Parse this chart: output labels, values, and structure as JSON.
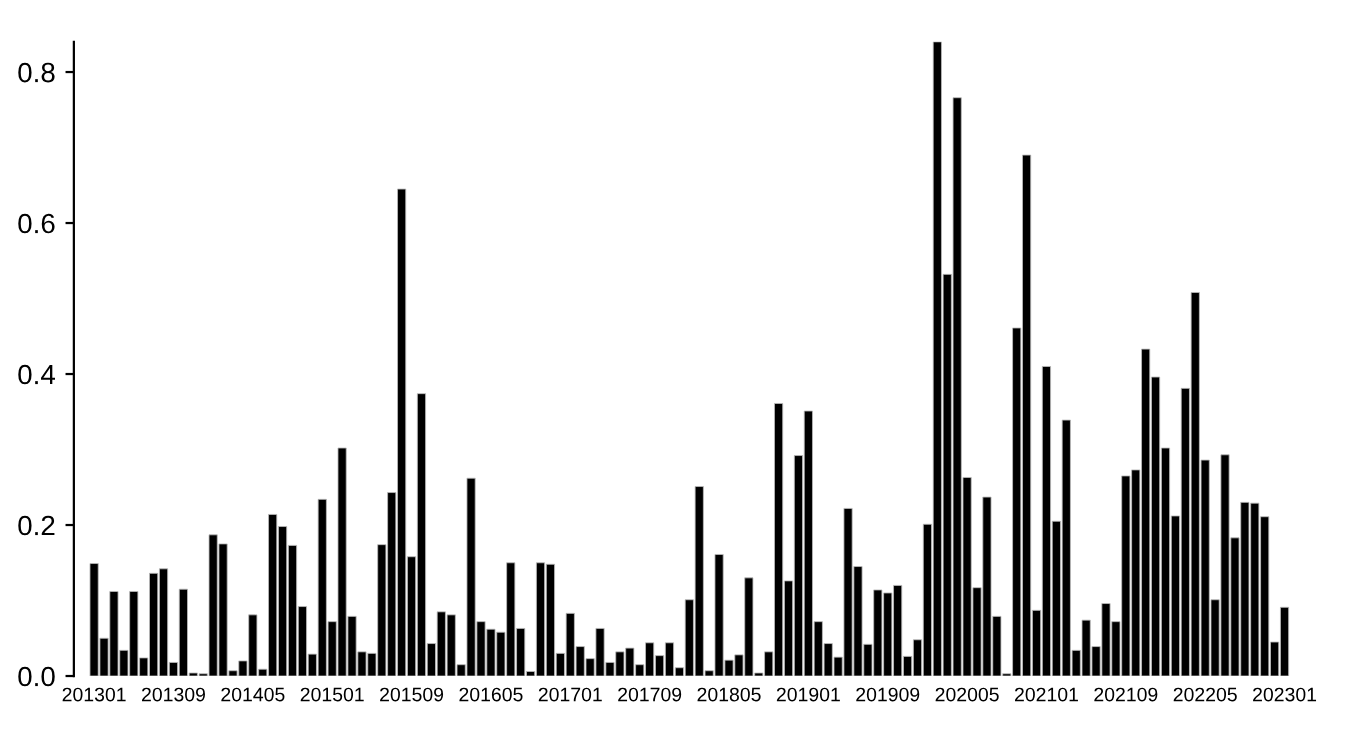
{
  "chart_data": {
    "type": "bar",
    "categories": [
      "201301",
      null,
      null,
      null,
      null,
      null,
      null,
      null,
      "201309",
      null,
      null,
      null,
      null,
      null,
      null,
      null,
      "201405",
      null,
      null,
      null,
      null,
      null,
      null,
      null,
      "201501",
      null,
      null,
      null,
      null,
      null,
      null,
      null,
      "201509",
      null,
      null,
      null,
      null,
      null,
      null,
      null,
      "201605",
      null,
      null,
      null,
      null,
      null,
      null,
      null,
      "201701",
      null,
      null,
      null,
      null,
      null,
      null,
      null,
      "201709",
      null,
      null,
      null,
      null,
      null,
      null,
      null,
      "201805",
      null,
      null,
      null,
      null,
      null,
      null,
      null,
      "201901",
      null,
      null,
      null,
      null,
      null,
      null,
      null,
      "201909",
      null,
      null,
      null,
      null,
      null,
      null,
      null,
      "202005",
      null,
      null,
      null,
      null,
      null,
      null,
      null,
      "202101",
      null,
      null,
      null,
      null,
      null,
      null,
      null,
      "202109",
      null,
      null,
      null,
      null,
      null,
      null,
      null,
      "202205",
      null,
      null,
      null,
      null,
      null,
      null,
      null,
      "202301"
    ],
    "values": [
      0.149,
      0.05,
      0.112,
      0.034,
      0.112,
      0.024,
      0.136,
      0.142,
      0.018,
      0.115,
      0.004,
      0.003,
      0.187,
      0.175,
      0.007,
      0.02,
      0.081,
      0.009,
      0.214,
      0.198,
      0.173,
      0.092,
      0.029,
      0.234,
      0.072,
      0.302,
      0.079,
      0.032,
      0.03,
      0.174,
      0.243,
      0.645,
      0.158,
      0.374,
      0.043,
      0.085,
      0.081,
      0.015,
      0.262,
      0.072,
      0.062,
      0.058,
      0.15,
      0.063,
      0.006,
      0.15,
      0.148,
      0.03,
      0.083,
      0.039,
      0.023,
      0.063,
      0.018,
      0.032,
      0.037,
      0.015,
      0.044,
      0.027,
      0.044,
      0.011,
      0.101,
      0.251,
      0.007,
      0.161,
      0.021,
      0.028,
      0.13,
      0.004,
      0.032,
      0.361,
      0.126,
      0.292,
      0.351,
      0.072,
      0.043,
      0.025,
      0.222,
      0.145,
      0.042,
      0.114,
      0.11,
      0.12,
      0.026,
      0.048,
      0.201,
      0.84,
      0.532,
      0.766,
      0.263,
      0.117,
      0.237,
      0.079,
      0.003,
      0.461,
      0.69,
      0.087,
      0.41,
      0.205,
      0.339,
      0.034,
      0.074,
      0.039,
      0.096,
      0.072,
      0.265,
      0.273,
      0.433,
      0.396,
      0.302,
      0.212,
      0.381,
      0.508,
      0.286,
      0.101,
      0.293,
      0.183,
      0.23,
      0.229,
      0.211,
      0.045,
      0.091
    ],
    "color": "#000000",
    "ylim": [
      0,
      0.84
    ],
    "yticks": [
      {
        "value": 0,
        "label": "0.0"
      },
      {
        "value": 0.2,
        "label": "0.2"
      },
      {
        "value": 0.4,
        "label": "0.4"
      },
      {
        "value": 0.6,
        "label": "0.6"
      },
      {
        "value": 0.8,
        "label": "0.8"
      }
    ],
    "grid": false,
    "legend": false
  }
}
